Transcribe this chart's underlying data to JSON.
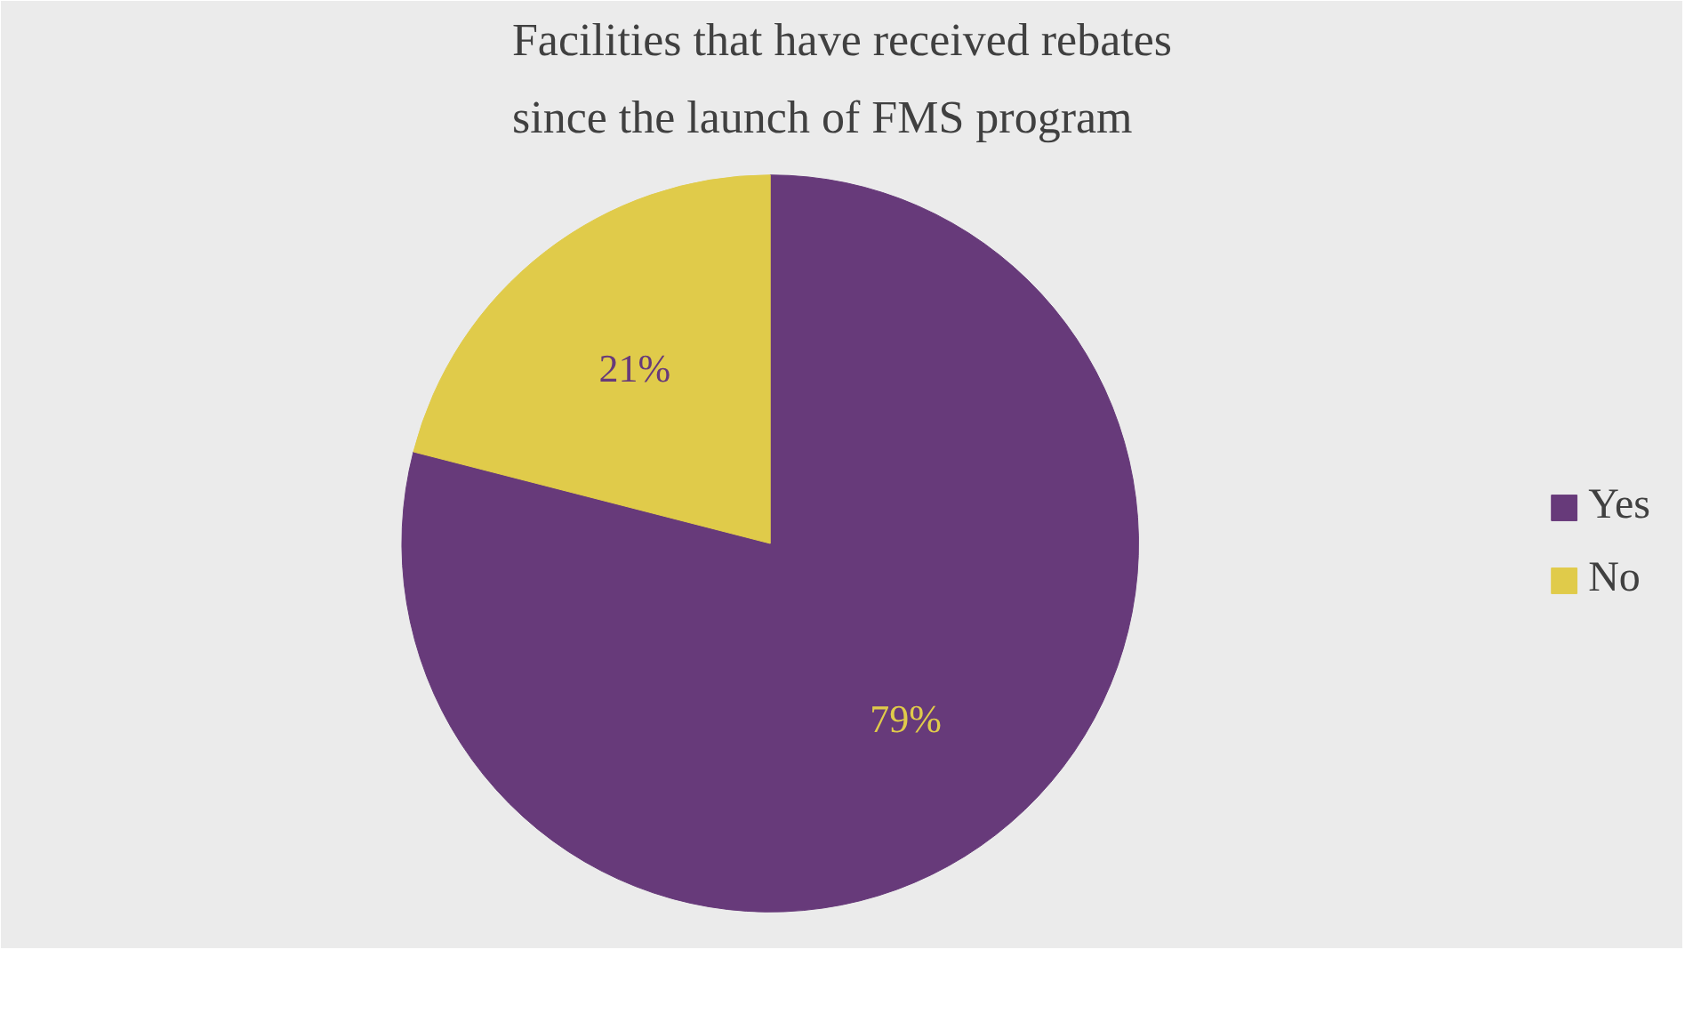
{
  "chart_data": {
    "type": "pie",
    "title": "Facilities that have received rebates since the launch of FMS program",
    "categories": [
      "Yes",
      "No"
    ],
    "values": [
      79,
      21
    ],
    "colors": [
      "#673a7a",
      "#e0cb4a"
    ],
    "value_labels": [
      "79%",
      "21%"
    ],
    "legend": "right"
  }
}
